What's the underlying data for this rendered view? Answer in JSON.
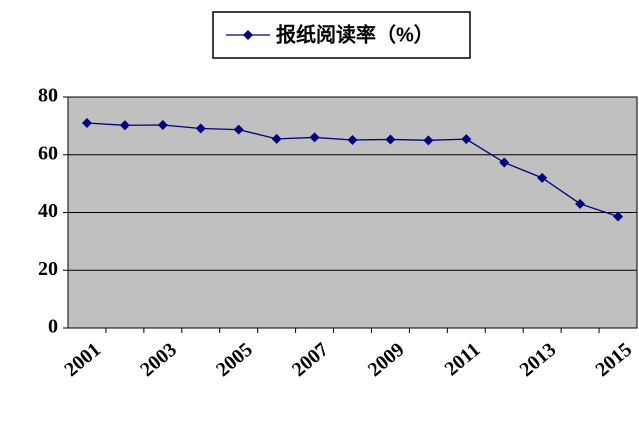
{
  "chart_data": {
    "type": "line",
    "categories": [
      "2001",
      null,
      "2003",
      null,
      "2005",
      null,
      "2007",
      null,
      "2009",
      null,
      "2011",
      null,
      "2013",
      null,
      "2015"
    ],
    "series": [
      {
        "name": "报纸阅读率（%）",
        "color": "#000080",
        "values": [
          71.0,
          70.2,
          70.3,
          69.1,
          68.7,
          65.5,
          66.0,
          65.1,
          65.3,
          65.0,
          65.4,
          57.3,
          52.0,
          43.0,
          38.6
        ]
      }
    ],
    "ylim": [
      0,
      80
    ],
    "yticks": [
      0,
      20,
      40,
      60,
      80
    ],
    "grid": true,
    "legend": "top"
  }
}
